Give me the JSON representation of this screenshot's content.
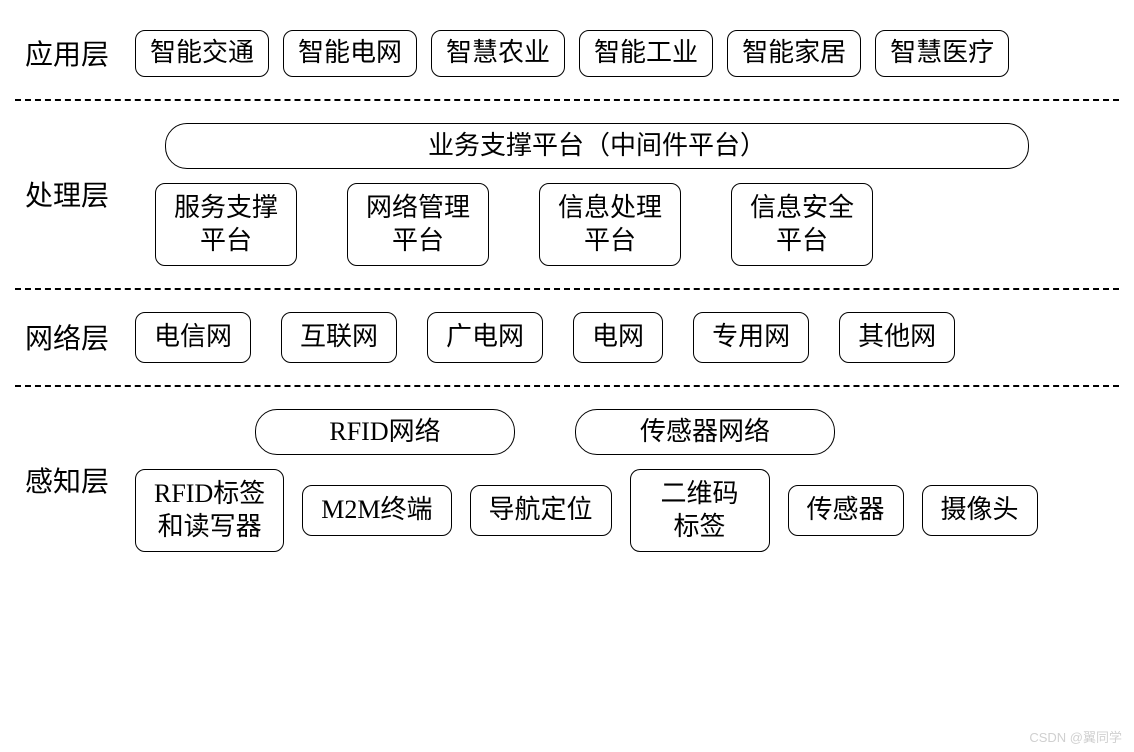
{
  "styling": {
    "background_color": "#ffffff",
    "text_color": "#000000",
    "border_color": "#000000",
    "border_width": 1.5,
    "border_radius_box": 10,
    "border_radius_pill": 22,
    "label_fontsize": 28,
    "box_fontsize": 26,
    "divider_style": "dashed",
    "divider_width": 2.5,
    "font_family": "SimSun"
  },
  "type": "layered-architecture-diagram",
  "layers": [
    {
      "label": "应用层",
      "rows": [
        {
          "items": [
            "智能交通",
            "智能电网",
            "智慧农业",
            "智能工业",
            "智能家居",
            "智慧医疗"
          ]
        }
      ]
    },
    {
      "label": "处理层",
      "rows": [
        {
          "items": [
            "业务支撑平台（中间件平台）"
          ],
          "style": "pill-wide"
        },
        {
          "items": [
            "服务支撑\n平台",
            "网络管理\n平台",
            "信息处理\n平台",
            "信息安全\n平台"
          ]
        }
      ]
    },
    {
      "label": "网络层",
      "rows": [
        {
          "items": [
            "电信网",
            "互联网",
            "广电网",
            "电网",
            "专用网",
            "其他网"
          ]
        }
      ]
    },
    {
      "label": "感知层",
      "rows": [
        {
          "items": [
            "RFID网络",
            "传感器网络"
          ],
          "style": "pill"
        },
        {
          "items": [
            "RFID标签\n和读写器",
            "M2M终端",
            "导航定位",
            "二维码\n标签",
            "传感器",
            "摄像头"
          ]
        }
      ]
    }
  ],
  "watermark": "CSDN @翼同学"
}
